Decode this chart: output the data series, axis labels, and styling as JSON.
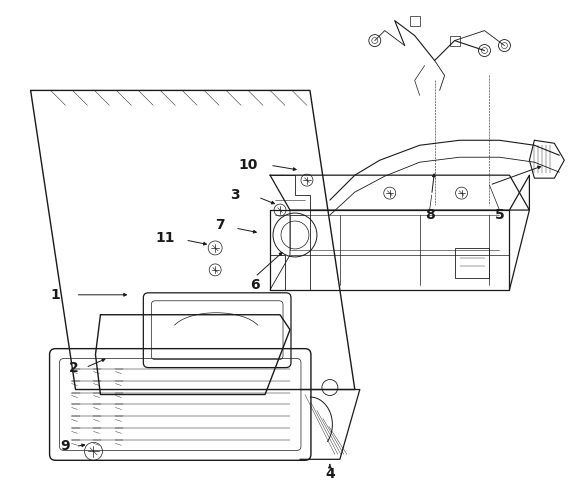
{
  "background_color": "#ffffff",
  "line_color": "#1a1a1a",
  "figsize": [
    5.68,
    4.84
  ],
  "dpi": 100,
  "lw_main": 0.8,
  "lw_thin": 0.4,
  "lw_thick": 1.1
}
